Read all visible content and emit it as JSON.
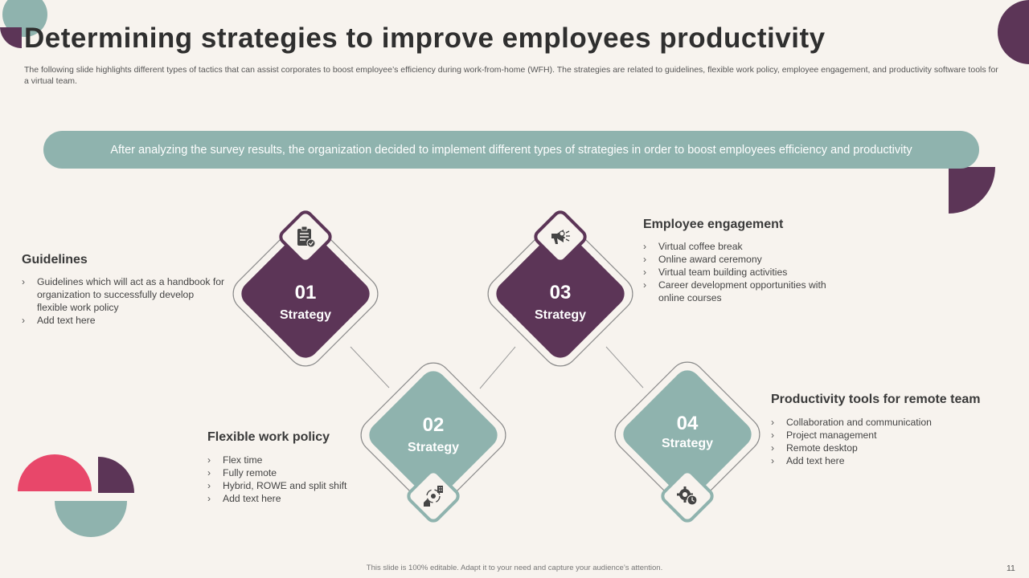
{
  "title": "Determining strategies to improve employees productivity",
  "subtitle": "The following slide highlights different types of tactics that can assist corporates to boost employee’s efficiency during work-from-home (WFH). The strategies are related to guidelines, flexible work policy, employee engagement, and productivity software tools for a virtual team.",
  "banner": "After analyzing the survey results, the organization decided to implement different types of strategies in order to boost employees efficiency and productivity",
  "strategies": [
    {
      "number": "01",
      "label": "Strategy",
      "heading": "Guidelines",
      "icon": "clipboard-check-icon",
      "items": [
        "Guidelines which will act as a handbook for organization to successfully develop flexible work policy",
        "Add text here"
      ]
    },
    {
      "number": "02",
      "label": "Strategy",
      "heading": "Flexible work policy",
      "icon": "home-office-cycle-icon",
      "items": [
        "Flex time",
        "Fully remote",
        "Hybrid, ROWE and split shift",
        "Add text here"
      ]
    },
    {
      "number": "03",
      "label": "Strategy",
      "heading": "Employee engagement",
      "icon": "megaphone-user-icon",
      "items": [
        "Virtual coffee break",
        "Online award ceremony",
        "Virtual team building activities",
        "Career development opportunities with online courses"
      ]
    },
    {
      "number": "04",
      "label": "Strategy",
      "heading": "Productivity tools for remote team",
      "icon": "gear-clock-icon",
      "items": [
        "Collaboration and communication",
        "Project management",
        "Remote desktop",
        "Add text here"
      ]
    }
  ],
  "footer": "This slide is 100% editable. Adapt it to your need and capture your audience’s attention.",
  "page_number": "11",
  "colors": {
    "purple": "#5c3557",
    "teal": "#8fb3ae",
    "pink": "#e8476a",
    "background": "#f7f3ee"
  }
}
